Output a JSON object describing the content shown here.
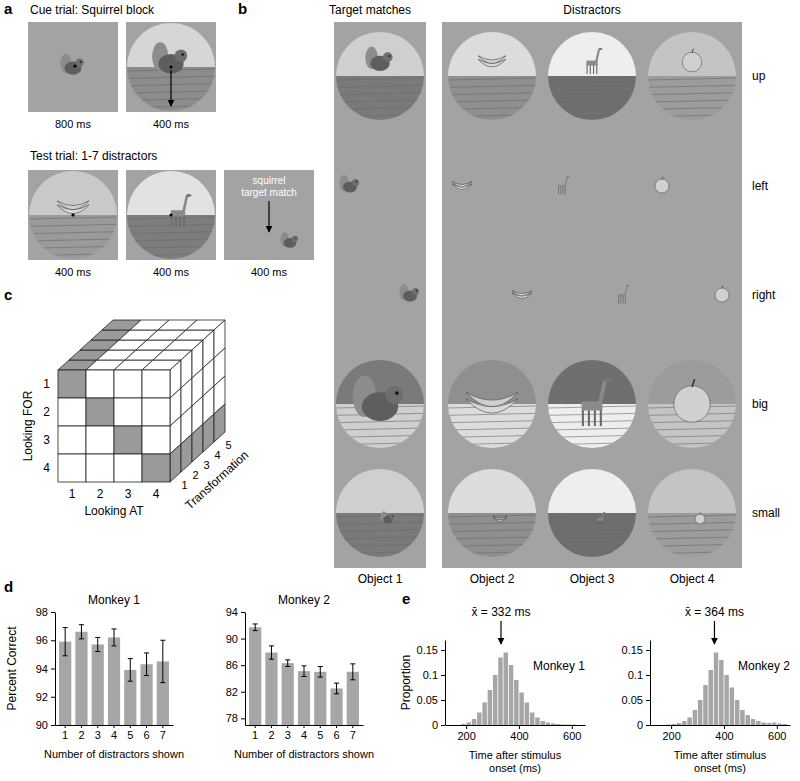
{
  "panel_labels": [
    "a",
    "b",
    "c",
    "d",
    "e"
  ],
  "panel_a": {
    "cue_title": "Cue trial: Squirrel block",
    "cue_times": [
      "800 ms",
      "400 ms"
    ],
    "test_title": "Test trial: 1-7 distractors",
    "test_times": [
      "400 ms",
      "400 ms",
      "400 ms"
    ],
    "target_note": [
      "squirrel",
      "target match"
    ]
  },
  "panel_b": {
    "headers": [
      "Target matches",
      "Distractors"
    ],
    "objects": [
      "Object 1",
      "Object 2",
      "Object 3",
      "Object 4"
    ],
    "transformations": [
      "up",
      "left",
      "right",
      "big",
      "small"
    ]
  },
  "panel_c": {
    "y_label": "Looking FOR",
    "x_label": "Looking AT",
    "z_label": "Transformation",
    "y_ticks": [
      1,
      2,
      3,
      4
    ],
    "x_ticks": [
      1,
      2,
      3,
      4
    ],
    "z_ticks": [
      1,
      2,
      3,
      4,
      5
    ]
  },
  "chart_data": [
    {
      "type": "bar",
      "title": "Monkey 1",
      "categories": [
        "1",
        "2",
        "3",
        "4",
        "5",
        "6",
        "7"
      ],
      "values": [
        95.9,
        96.6,
        95.7,
        96.2,
        93.9,
        94.3,
        94.5
      ],
      "errors": [
        1,
        0.5,
        0.5,
        0.6,
        0.8,
        0.8,
        1.5
      ],
      "color": "#a6a6a6",
      "ylim": [
        90,
        98
      ],
      "yticks": [
        90,
        92,
        94,
        96,
        98
      ],
      "y_label": "Percent Correct",
      "x_label": "Number of distractors shown"
    },
    {
      "type": "bar",
      "title": "Monkey 2",
      "categories": [
        "1",
        "2",
        "3",
        "4",
        "5",
        "6",
        "7"
      ],
      "values": [
        91.7,
        87.9,
        86.3,
        85.1,
        85.0,
        82.5,
        85.0
      ],
      "errors": [
        0.5,
        1,
        0.5,
        0.8,
        0.8,
        0.8,
        1.2
      ],
      "color": "#a6a6a6",
      "ylim": [
        77,
        94
      ],
      "yticks": [
        78,
        82,
        86,
        90,
        94
      ],
      "x_label": "Number of distractors shown"
    },
    {
      "type": "histogram",
      "title": "Monkey 1",
      "bins": [
        180,
        200,
        220,
        240,
        260,
        280,
        300,
        320,
        340,
        360,
        380,
        400,
        420,
        440,
        460,
        480,
        500,
        520,
        540,
        560,
        580,
        600,
        620
      ],
      "values": [
        0.002,
        0.005,
        0.012,
        0.025,
        0.045,
        0.07,
        0.1,
        0.135,
        0.145,
        0.12,
        0.09,
        0.065,
        0.045,
        0.025,
        0.015,
        0.008,
        0.005,
        0.003,
        0.002,
        0.001,
        0.001,
        0.001
      ],
      "color": "#a6a6a6",
      "xlim": [
        120,
        650
      ],
      "xticks": [
        200,
        400,
        600
      ],
      "ylim": [
        0,
        0.17
      ],
      "yticks": [
        0,
        0.05,
        0.1,
        0.15
      ],
      "annotation": {
        "text": "x̄ = 332 ms",
        "x": 332
      },
      "y_label": "Proportion",
      "x_label": [
        "Time after stimulus",
        "onset (ms)"
      ]
    },
    {
      "type": "histogram",
      "title": "Monkey 2",
      "bins": [
        180,
        200,
        220,
        240,
        260,
        280,
        300,
        320,
        340,
        360,
        380,
        400,
        420,
        440,
        460,
        480,
        500,
        520,
        540,
        560,
        580,
        600,
        620,
        640
      ],
      "values": [
        0.001,
        0.002,
        0.004,
        0.008,
        0.015,
        0.03,
        0.05,
        0.08,
        0.11,
        0.145,
        0.13,
        0.1,
        0.075,
        0.05,
        0.03,
        0.02,
        0.012,
        0.008,
        0.005,
        0.004,
        0.005,
        0.003,
        0.002
      ],
      "color": "#a6a6a6",
      "xlim": [
        120,
        650
      ],
      "xticks": [
        200,
        400,
        600
      ],
      "ylim": [
        0,
        0.17
      ],
      "yticks": [
        0,
        0.05,
        0.1,
        0.15
      ],
      "annotation": {
        "text": "x̄ = 364 ms",
        "x": 364
      },
      "x_label": [
        "Time after stimulus",
        "onset (ms)"
      ]
    }
  ]
}
